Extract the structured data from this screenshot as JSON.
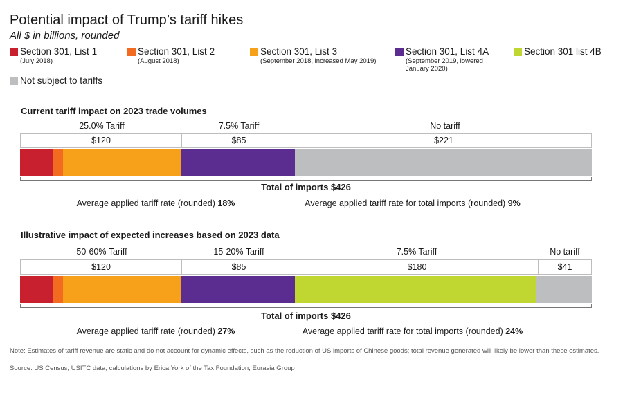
{
  "title": "Potential impact of Trump’s tariff hikes",
  "subtitle": "All $ in billions, rounded",
  "legend": [
    {
      "label": "Section 301, List 1",
      "sub": "(July 2018)",
      "color": "#c8202f"
    },
    {
      "label": "Section 301, List 2",
      "sub": "(August 2018)",
      "color": "#f26b21"
    },
    {
      "label": "Section 301, List 3",
      "sub": "(September 2018, increased May 2019)",
      "color": "#f7a11a"
    },
    {
      "label": "Section 301, List 4A",
      "sub": "(September 2019, lowered January 2020)",
      "color": "#5c2d91"
    },
    {
      "label": "Section 301 list 4B",
      "sub": "",
      "color": "#bfd730"
    },
    {
      "label": "Not subject to tariffs",
      "sub": "",
      "color": "#bcbec0"
    }
  ],
  "note": "Note: Estimates of tariff revenue are static and do not account for dynamic effects, such as the reduction of US imports of Chinese goods; total revenue generated will likely be lower than these estimates.",
  "source": "Source: US Census, USITC data, calculations by Erica York of the Tax Foundation, Eurasia Group",
  "chart_data": [
    {
      "type": "bar",
      "title": "Current tariff impact on 2023 trade volumes",
      "orientation": "horizontal-stacked",
      "segments": [
        {
          "name": "Section 301, List 1",
          "value": 24,
          "color": "#c8202f"
        },
        {
          "name": "Section 301, List 2",
          "value": 8,
          "color": "#f26b21"
        },
        {
          "name": "Section 301, List 3",
          "value": 88,
          "color": "#f7a11a"
        },
        {
          "name": "Section 301, List 4A",
          "value": 85,
          "color": "#5c2d91"
        },
        {
          "name": "Not subject to tariffs",
          "value": 221,
          "color": "#bcbec0"
        }
      ],
      "groups": [
        {
          "label": "25.0% Tariff",
          "value_label": "$120",
          "value": 120
        },
        {
          "label": "7.5% Tariff",
          "value_label": "$85",
          "value": 85
        },
        {
          "label": "No tariff",
          "value_label": "$221",
          "value": 221
        }
      ],
      "total_label": "Total of imports $426",
      "total": 426,
      "avg_left_text": "Average applied tariff rate (rounded) ",
      "avg_left_value": "18%",
      "avg_right_text": "Average applied tariff rate for total imports (rounded) ",
      "avg_right_value": "9%"
    },
    {
      "type": "bar",
      "title": "Illustrative impact of expected increases based on 2023 data",
      "orientation": "horizontal-stacked",
      "segments": [
        {
          "name": "Section 301, List 1",
          "value": 24,
          "color": "#c8202f"
        },
        {
          "name": "Section 301, List 2",
          "value": 8,
          "color": "#f26b21"
        },
        {
          "name": "Section 301, List 3",
          "value": 88,
          "color": "#f7a11a"
        },
        {
          "name": "Section 301, List 4A",
          "value": 85,
          "color": "#5c2d91"
        },
        {
          "name": "Section 301 list 4B",
          "value": 180,
          "color": "#bfd730"
        },
        {
          "name": "Not subject to tariffs",
          "value": 41,
          "color": "#bcbec0"
        }
      ],
      "groups": [
        {
          "label": "50-60% Tariff",
          "value_label": "$120",
          "value": 120
        },
        {
          "label": "15-20% Tariff",
          "value_label": "$85",
          "value": 85
        },
        {
          "label": "7.5% Tariff",
          "value_label": "$180",
          "value": 180
        },
        {
          "label": "No tariff",
          "value_label": "$41",
          "value": 41
        }
      ],
      "total_label": "Total of imports $426",
      "total": 426,
      "avg_left_text": "Average applied tariff rate (rounded) ",
      "avg_left_value": "27%",
      "avg_right_text": "Average applied tariff rate for total imports (rounded) ",
      "avg_right_value": "24%"
    }
  ]
}
